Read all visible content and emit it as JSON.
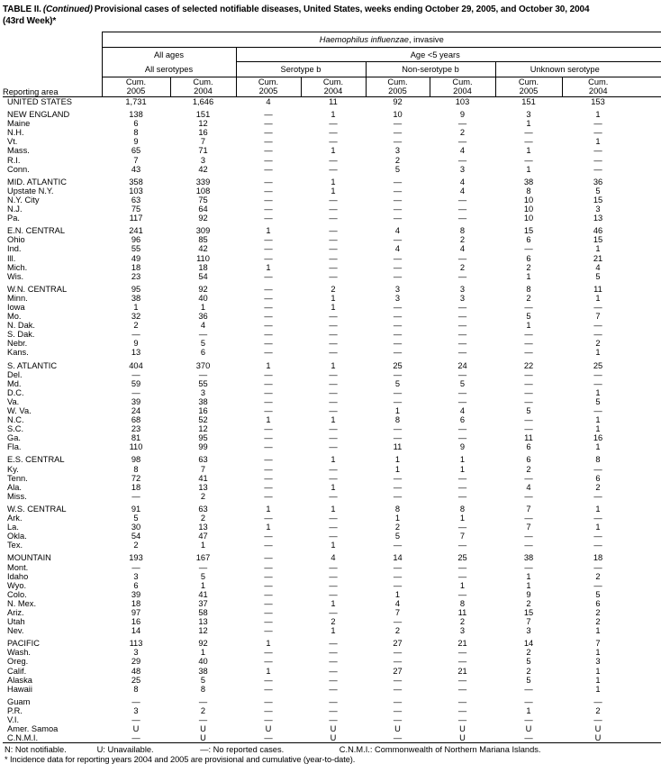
{
  "title": {
    "prefix": "TABLE II.",
    "continued": "(Continued)",
    "line1_rest": "Provisional cases of selected notifiable diseases, United States, weeks ending October 29, 2005, and October 30, 2004",
    "line2": "(43rd Week)*"
  },
  "table": {
    "reporting_area_label": "Reporting area",
    "disease_italic": "Haemophilus influenzae",
    "disease_rest": ", invasive",
    "group_all_ages": "All ages",
    "group_age_under_5": "Age <5 years",
    "subgroup_all_serotypes": "All serotypes",
    "subgroup_serotype_b": "Serotype b",
    "subgroup_non_serotype_b": "Non-serotype b",
    "subgroup_unknown_serotype": "Unknown serotype",
    "cum_label": "Cum.",
    "years": [
      "2005",
      "2004",
      "2005",
      "2004",
      "2005",
      "2004",
      "2005",
      "2004"
    ],
    "sections": [
      {
        "rows": [
          {
            "area": "UNITED STATES",
            "values": [
              "1,731",
              "1,646",
              "4",
              "11",
              "92",
              "103",
              "151",
              "153"
            ]
          }
        ]
      },
      {
        "rows": [
          {
            "area": "NEW ENGLAND",
            "values": [
              "138",
              "151",
              "—",
              "1",
              "10",
              "9",
              "3",
              "1"
            ]
          },
          {
            "area": "Maine",
            "values": [
              "6",
              "12",
              "—",
              "—",
              "—",
              "—",
              "1",
              "—"
            ]
          },
          {
            "area": "N.H.",
            "values": [
              "8",
              "16",
              "—",
              "—",
              "—",
              "2",
              "—",
              "—"
            ]
          },
          {
            "area": "Vt.",
            "values": [
              "9",
              "7",
              "—",
              "—",
              "—",
              "—",
              "—",
              "1"
            ]
          },
          {
            "area": "Mass.",
            "values": [
              "65",
              "71",
              "—",
              "1",
              "3",
              "4",
              "1",
              "—"
            ]
          },
          {
            "area": "R.I.",
            "values": [
              "7",
              "3",
              "—",
              "—",
              "2",
              "—",
              "—",
              "—"
            ]
          },
          {
            "area": "Conn.",
            "values": [
              "43",
              "42",
              "—",
              "—",
              "5",
              "3",
              "1",
              "—"
            ]
          }
        ]
      },
      {
        "rows": [
          {
            "area": "MID. ATLANTIC",
            "values": [
              "358",
              "339",
              "—",
              "1",
              "—",
              "4",
              "38",
              "36"
            ]
          },
          {
            "area": "Upstate N.Y.",
            "values": [
              "103",
              "108",
              "—",
              "1",
              "—",
              "4",
              "8",
              "5"
            ]
          },
          {
            "area": "N.Y. City",
            "values": [
              "63",
              "75",
              "—",
              "—",
              "—",
              "—",
              "10",
              "15"
            ]
          },
          {
            "area": "N.J.",
            "values": [
              "75",
              "64",
              "—",
              "—",
              "—",
              "—",
              "10",
              "3"
            ]
          },
          {
            "area": "Pa.",
            "values": [
              "117",
              "92",
              "—",
              "—",
              "—",
              "—",
              "10",
              "13"
            ]
          }
        ]
      },
      {
        "rows": [
          {
            "area": "E.N. CENTRAL",
            "values": [
              "241",
              "309",
              "1",
              "—",
              "4",
              "8",
              "15",
              "46"
            ]
          },
          {
            "area": "Ohio",
            "values": [
              "96",
              "85",
              "—",
              "—",
              "—",
              "2",
              "6",
              "15"
            ]
          },
          {
            "area": "Ind.",
            "values": [
              "55",
              "42",
              "—",
              "—",
              "4",
              "4",
              "—",
              "1"
            ]
          },
          {
            "area": "Ill.",
            "values": [
              "49",
              "110",
              "—",
              "—",
              "—",
              "—",
              "6",
              "21"
            ]
          },
          {
            "area": "Mich.",
            "values": [
              "18",
              "18",
              "1",
              "—",
              "—",
              "2",
              "2",
              "4"
            ]
          },
          {
            "area": "Wis.",
            "values": [
              "23",
              "54",
              "—",
              "—",
              "—",
              "—",
              "1",
              "5"
            ]
          }
        ]
      },
      {
        "rows": [
          {
            "area": "W.N. CENTRAL",
            "values": [
              "95",
              "92",
              "—",
              "2",
              "3",
              "3",
              "8",
              "11"
            ]
          },
          {
            "area": "Minn.",
            "values": [
              "38",
              "40",
              "—",
              "1",
              "3",
              "3",
              "2",
              "1"
            ]
          },
          {
            "area": "Iowa",
            "values": [
              "1",
              "1",
              "—",
              "1",
              "—",
              "—",
              "—",
              "—"
            ]
          },
          {
            "area": "Mo.",
            "values": [
              "32",
              "36",
              "—",
              "—",
              "—",
              "—",
              "5",
              "7"
            ]
          },
          {
            "area": "N. Dak.",
            "values": [
              "2",
              "4",
              "—",
              "—",
              "—",
              "—",
              "1",
              "—"
            ]
          },
          {
            "area": "S. Dak.",
            "values": [
              "—",
              "—",
              "—",
              "—",
              "—",
              "—",
              "—",
              "—"
            ]
          },
          {
            "area": "Nebr.",
            "values": [
              "9",
              "5",
              "—",
              "—",
              "—",
              "—",
              "—",
              "2"
            ]
          },
          {
            "area": "Kans.",
            "values": [
              "13",
              "6",
              "—",
              "—",
              "—",
              "—",
              "—",
              "1"
            ]
          }
        ]
      },
      {
        "rows": [
          {
            "area": "S. ATLANTIC",
            "values": [
              "404",
              "370",
              "1",
              "1",
              "25",
              "24",
              "22",
              "25"
            ]
          },
          {
            "area": "Del.",
            "values": [
              "—",
              "—",
              "—",
              "—",
              "—",
              "—",
              "—",
              "—"
            ]
          },
          {
            "area": "Md.",
            "values": [
              "59",
              "55",
              "—",
              "—",
              "5",
              "5",
              "—",
              "—"
            ]
          },
          {
            "area": "D.C.",
            "values": [
              "—",
              "3",
              "—",
              "—",
              "—",
              "—",
              "—",
              "1"
            ]
          },
          {
            "area": "Va.",
            "values": [
              "39",
              "38",
              "—",
              "—",
              "—",
              "—",
              "—",
              "5"
            ]
          },
          {
            "area": "W. Va.",
            "values": [
              "24",
              "16",
              "—",
              "—",
              "1",
              "4",
              "5",
              "—"
            ]
          },
          {
            "area": "N.C.",
            "values": [
              "68",
              "52",
              "1",
              "1",
              "8",
              "6",
              "—",
              "1"
            ]
          },
          {
            "area": "S.C.",
            "values": [
              "23",
              "12",
              "—",
              "—",
              "—",
              "—",
              "—",
              "1"
            ]
          },
          {
            "area": "Ga.",
            "values": [
              "81",
              "95",
              "—",
              "—",
              "—",
              "—",
              "11",
              "16"
            ]
          },
          {
            "area": "Fla.",
            "values": [
              "110",
              "99",
              "—",
              "—",
              "11",
              "9",
              "6",
              "1"
            ]
          }
        ]
      },
      {
        "rows": [
          {
            "area": "E.S. CENTRAL",
            "values": [
              "98",
              "63",
              "—",
              "1",
              "1",
              "1",
              "6",
              "8"
            ]
          },
          {
            "area": "Ky.",
            "values": [
              "8",
              "7",
              "—",
              "—",
              "1",
              "1",
              "2",
              "—"
            ]
          },
          {
            "area": "Tenn.",
            "values": [
              "72",
              "41",
              "—",
              "—",
              "—",
              "—",
              "—",
              "6"
            ]
          },
          {
            "area": "Ala.",
            "values": [
              "18",
              "13",
              "—",
              "1",
              "—",
              "—",
              "4",
              "2"
            ]
          },
          {
            "area": "Miss.",
            "values": [
              "—",
              "2",
              "—",
              "—",
              "—",
              "—",
              "—",
              "—"
            ]
          }
        ]
      },
      {
        "rows": [
          {
            "area": "W.S. CENTRAL",
            "values": [
              "91",
              "63",
              "1",
              "1",
              "8",
              "8",
              "7",
              "1"
            ]
          },
          {
            "area": "Ark.",
            "values": [
              "5",
              "2",
              "—",
              "—",
              "1",
              "1",
              "—",
              "—"
            ]
          },
          {
            "area": "La.",
            "values": [
              "30",
              "13",
              "1",
              "—",
              "2",
              "—",
              "7",
              "1"
            ]
          },
          {
            "area": "Okla.",
            "values": [
              "54",
              "47",
              "—",
              "—",
              "5",
              "7",
              "—",
              "—"
            ]
          },
          {
            "area": "Tex.",
            "values": [
              "2",
              "1",
              "—",
              "1",
              "—",
              "—",
              "—",
              "—"
            ]
          }
        ]
      },
      {
        "rows": [
          {
            "area": "MOUNTAIN",
            "values": [
              "193",
              "167",
              "—",
              "4",
              "14",
              "25",
              "38",
              "18"
            ]
          },
          {
            "area": "Mont.",
            "values": [
              "—",
              "—",
              "—",
              "—",
              "—",
              "—",
              "—",
              "—"
            ]
          },
          {
            "area": "Idaho",
            "values": [
              "3",
              "5",
              "—",
              "—",
              "—",
              "—",
              "1",
              "2"
            ]
          },
          {
            "area": "Wyo.",
            "values": [
              "6",
              "1",
              "—",
              "—",
              "—",
              "1",
              "1",
              "—"
            ]
          },
          {
            "area": "Colo.",
            "values": [
              "39",
              "41",
              "—",
              "—",
              "1",
              "—",
              "9",
              "5"
            ]
          },
          {
            "area": "N. Mex.",
            "values": [
              "18",
              "37",
              "—",
              "1",
              "4",
              "8",
              "2",
              "6"
            ]
          },
          {
            "area": "Ariz.",
            "values": [
              "97",
              "58",
              "—",
              "—",
              "7",
              "11",
              "15",
              "2"
            ]
          },
          {
            "area": "Utah",
            "values": [
              "16",
              "13",
              "—",
              "2",
              "—",
              "2",
              "7",
              "2"
            ]
          },
          {
            "area": "Nev.",
            "values": [
              "14",
              "12",
              "—",
              "1",
              "2",
              "3",
              "3",
              "1"
            ]
          }
        ]
      },
      {
        "rows": [
          {
            "area": "PACIFIC",
            "values": [
              "113",
              "92",
              "1",
              "—",
              "27",
              "21",
              "14",
              "7"
            ]
          },
          {
            "area": "Wash.",
            "values": [
              "3",
              "1",
              "—",
              "—",
              "—",
              "—",
              "2",
              "1"
            ]
          },
          {
            "area": "Oreg.",
            "values": [
              "29",
              "40",
              "—",
              "—",
              "—",
              "—",
              "5",
              "3"
            ]
          },
          {
            "area": "Calif.",
            "values": [
              "48",
              "38",
              "1",
              "—",
              "27",
              "21",
              "2",
              "1"
            ]
          },
          {
            "area": "Alaska",
            "values": [
              "25",
              "5",
              "—",
              "—",
              "—",
              "—",
              "5",
              "1"
            ]
          },
          {
            "area": "Hawaii",
            "values": [
              "8",
              "8",
              "—",
              "—",
              "—",
              "—",
              "—",
              "1"
            ]
          }
        ]
      },
      {
        "rows": [
          {
            "area": "Guam",
            "values": [
              "—",
              "—",
              "—",
              "—",
              "—",
              "—",
              "—",
              "—"
            ]
          },
          {
            "area": "P.R.",
            "values": [
              "3",
              "2",
              "—",
              "—",
              "—",
              "—",
              "1",
              "2"
            ]
          },
          {
            "area": "V.I.",
            "values": [
              "—",
              "—",
              "—",
              "—",
              "—",
              "—",
              "—",
              "—"
            ]
          },
          {
            "area": "Amer. Samoa",
            "values": [
              "U",
              "U",
              "U",
              "U",
              "U",
              "U",
              "U",
              "U"
            ]
          },
          {
            "area": "C.N.M.I.",
            "values": [
              "—",
              "U",
              "—",
              "U",
              "—",
              "U",
              "—",
              "U"
            ]
          }
        ]
      }
    ]
  },
  "footnotes": {
    "n": "N: Not notifiable.",
    "u": "U: Unavailable.",
    "dash": "—: No reported cases.",
    "cnmi": "C.N.M.I.: Commonwealth of Northern Mariana Islands.",
    "line2": "* Incidence data for reporting years 2004 and 2005 are provisional and cumulative (year-to-date)."
  }
}
